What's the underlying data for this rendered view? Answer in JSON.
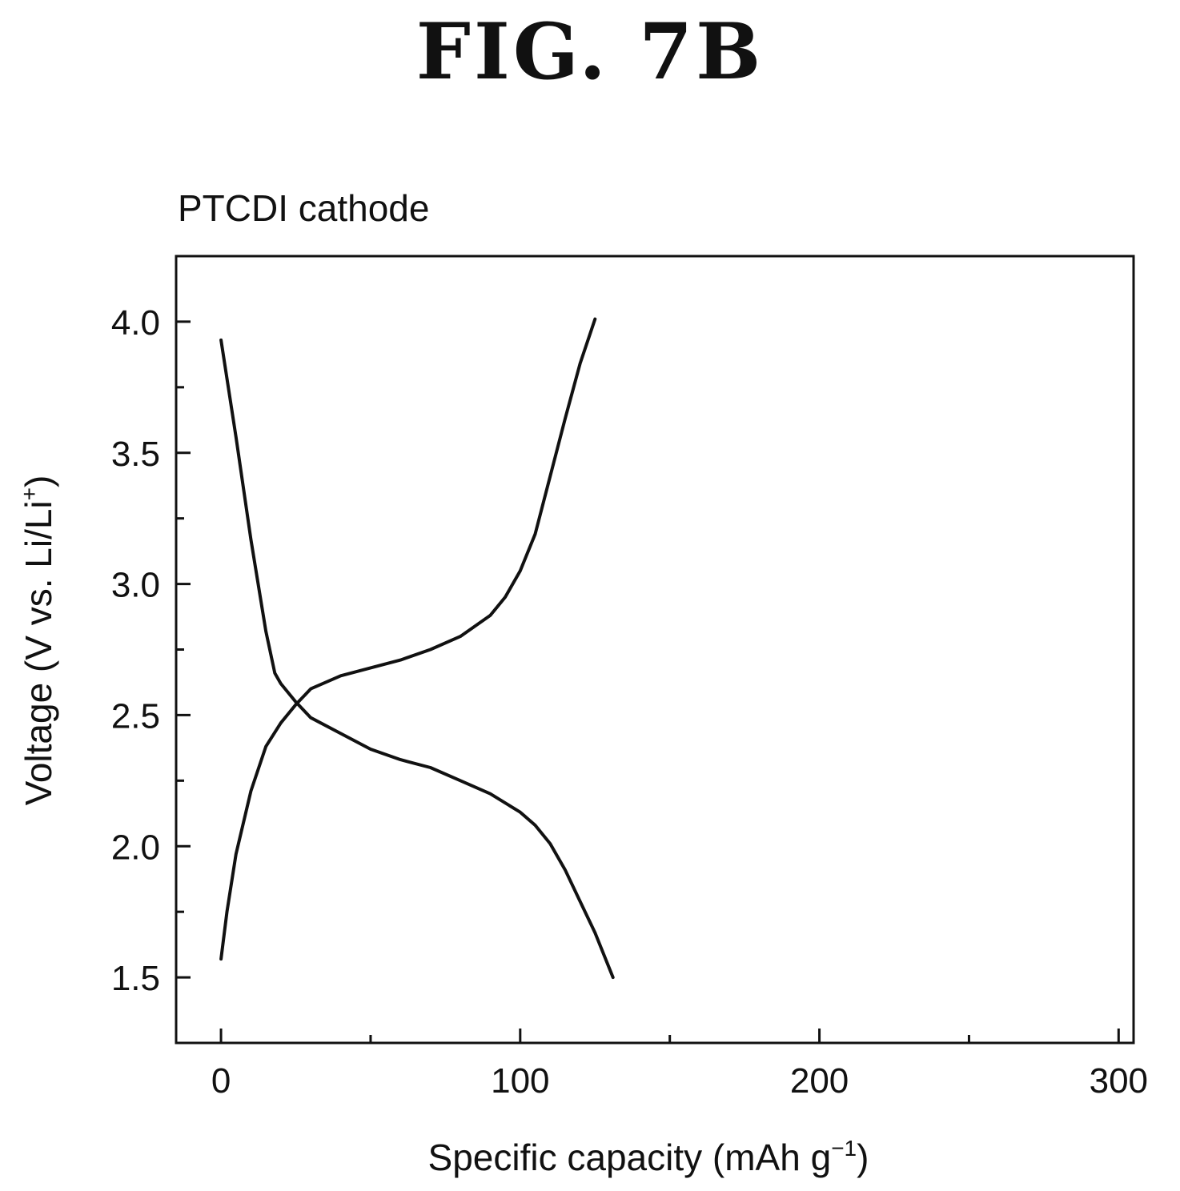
{
  "figure": {
    "label": "FIG. 7B"
  },
  "chart_data": {
    "type": "line",
    "title": "PTCDI cathode",
    "xlabel_main": "Specific capacity (mAh g",
    "xlabel_sup": "−1",
    "xlabel_end": ")",
    "ylabel_main": "Voltage (V vs. Li/Li",
    "ylabel_sup": "+",
    "ylabel_end": ")",
    "xlim": [
      -15,
      305
    ],
    "ylim": [
      1.25,
      4.25
    ],
    "xticks": [
      0,
      100,
      200,
      300
    ],
    "xtick_labels": [
      "0",
      "100",
      "200",
      "300"
    ],
    "x_minor_ticks": [
      50,
      150,
      250
    ],
    "yticks": [
      1.5,
      2.0,
      2.5,
      3.0,
      3.5,
      4.0
    ],
    "ytick_labels": [
      "1.5",
      "2.0",
      "2.5",
      "3.0",
      "3.5",
      "4.0"
    ],
    "y_minor_ticks": [
      1.75,
      2.25,
      2.75,
      3.25,
      3.75
    ],
    "grid": false,
    "series": [
      {
        "x": [
          0,
          5,
          10,
          15,
          18,
          20,
          25,
          30,
          40,
          50,
          60,
          70,
          80,
          90,
          100,
          105,
          110,
          115,
          120,
          125,
          131
        ],
        "y": [
          3.93,
          3.56,
          3.17,
          2.82,
          2.66,
          2.62,
          2.55,
          2.49,
          2.43,
          2.37,
          2.33,
          2.3,
          2.25,
          2.2,
          2.13,
          2.08,
          2.01,
          1.91,
          1.79,
          1.67,
          1.5
        ]
      },
      {
        "x": [
          0,
          2,
          5,
          10,
          15,
          20,
          25,
          30,
          40,
          50,
          60,
          70,
          80,
          90,
          95,
          100,
          105,
          110,
          115,
          120,
          125
        ],
        "y": [
          1.57,
          1.75,
          1.97,
          2.21,
          2.38,
          2.47,
          2.54,
          2.6,
          2.65,
          2.68,
          2.71,
          2.75,
          2.8,
          2.88,
          2.95,
          3.05,
          3.19,
          3.41,
          3.63,
          3.84,
          4.01
        ]
      }
    ]
  }
}
